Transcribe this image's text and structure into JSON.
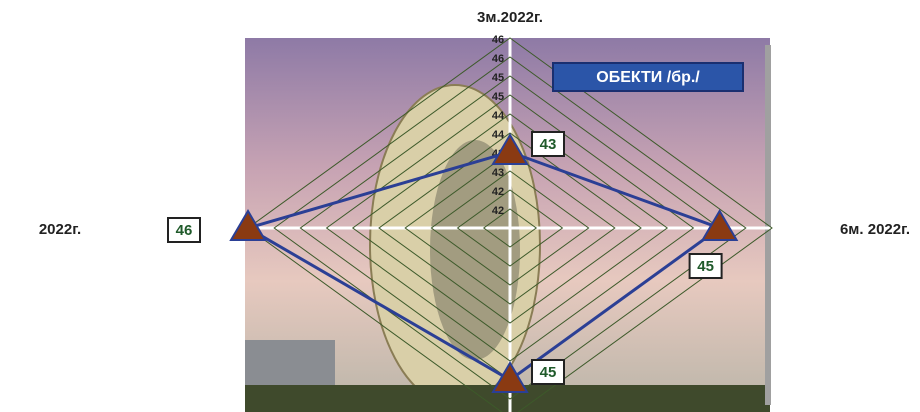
{
  "chart_data": {
    "type": "radar",
    "categories": [
      "3м.2022г.",
      "6м. 2022г.",
      null,
      "2022г."
    ],
    "series": [
      {
        "name": "ОБЕКТИ /бр./",
        "color": "#2b3f95",
        "marker_color": "#8a3a12",
        "values": [
          43,
          45,
          45,
          46
        ]
      }
    ],
    "rlim": [
      41,
      46
    ],
    "rticks": [
      {
        "value": 41.5,
        "label": "42"
      },
      {
        "value": 42,
        "label": "42"
      },
      {
        "value": 42.5,
        "label": "43"
      },
      {
        "value": 43,
        "label": "43"
      },
      {
        "value": 43.5,
        "label": "44"
      },
      {
        "value": 44,
        "label": "44"
      },
      {
        "value": 44.5,
        "label": "45"
      },
      {
        "value": 45,
        "label": "45"
      },
      {
        "value": 45.5,
        "label": "46"
      },
      {
        "value": 46,
        "label": "46"
      }
    ],
    "grid": true
  }
}
